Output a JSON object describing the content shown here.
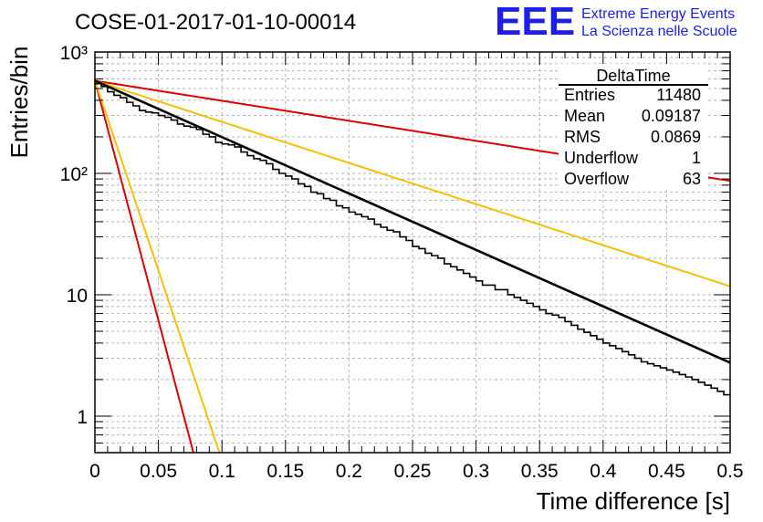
{
  "header": {
    "run_title": "COSE-01-2017-01-10-00014",
    "logo_mark": "EEE",
    "logo_line1": "Extreme Energy Events",
    "logo_line2": "La Scienza nelle Scuole",
    "logo_color": "#1e1ee6"
  },
  "stats": {
    "title": "DeltaTime",
    "rows": [
      {
        "label": "Entries",
        "value": "11480"
      },
      {
        "label": "Mean",
        "value": "0.09187"
      },
      {
        "label": "RMS",
        "value": "0.0869"
      },
      {
        "label": "Underflow",
        "value": "1"
      },
      {
        "label": "Overflow",
        "value": "63"
      }
    ]
  },
  "chart_data": {
    "type": "line",
    "xlabel": "Time difference [s]",
    "ylabel": "Entries/bin",
    "xlim": [
      0,
      0.5
    ],
    "ylim": [
      0.5,
      1000
    ],
    "yscale": "log",
    "grid": true,
    "x_ticks": [
      0,
      0.05,
      0.1,
      0.15,
      0.2,
      0.25,
      0.3,
      0.35,
      0.4,
      0.45,
      0.5
    ],
    "x_tick_labels": [
      "0",
      "0.05",
      "0.1",
      "0.15",
      "0.2",
      "0.25",
      "0.3",
      "0.35",
      "0.4",
      "0.45",
      "0.5"
    ],
    "y_ticks": [
      1,
      10,
      100,
      1000
    ],
    "y_tick_labels": [
      "1",
      "10",
      "10²",
      "10³"
    ],
    "histogram": {
      "color": "#000000",
      "bin_width": 0.005,
      "bin_start": 0,
      "values": [
        548,
        520,
        470,
        440,
        420,
        385,
        360,
        330,
        320,
        315,
        300,
        290,
        275,
        255,
        245,
        240,
        230,
        210,
        200,
        180,
        175,
        172,
        165,
        150,
        140,
        132,
        128,
        120,
        108,
        100,
        95,
        90,
        82,
        78,
        70,
        68,
        62,
        60,
        54,
        52,
        48,
        46,
        44,
        42,
        38,
        36,
        34,
        33,
        30,
        28,
        25,
        24,
        22,
        21,
        20,
        18,
        17,
        16,
        15,
        14,
        13,
        12,
        12,
        11,
        11,
        10,
        9.5,
        9,
        8.5,
        8,
        7.5,
        7,
        6.8,
        6.5,
        6,
        5.6,
        5.2,
        4.9,
        4.6,
        4.3,
        4,
        3.8,
        3.6,
        3.4,
        3.2,
        3.0,
        2.8,
        2.7,
        2.6,
        2.5,
        2.4,
        2.3,
        2.2,
        2.1,
        2.0,
        1.9,
        1.8,
        1.7,
        1.6,
        1.5
      ]
    },
    "fit": {
      "color": "#000000",
      "y0": 580,
      "slope_per_s": -10.7
    },
    "reference_curves": [
      {
        "color": "#dd0000",
        "y0": 580,
        "slope_per_s": -3.8
      },
      {
        "color": "#f5c000",
        "y0": 580,
        "slope_per_s": -7.8
      },
      {
        "color": "#dd0000",
        "y0": 580,
        "slope_per_s": -91
      },
      {
        "color": "#f5c000",
        "y0": 580,
        "slope_per_s": -72
      }
    ]
  }
}
